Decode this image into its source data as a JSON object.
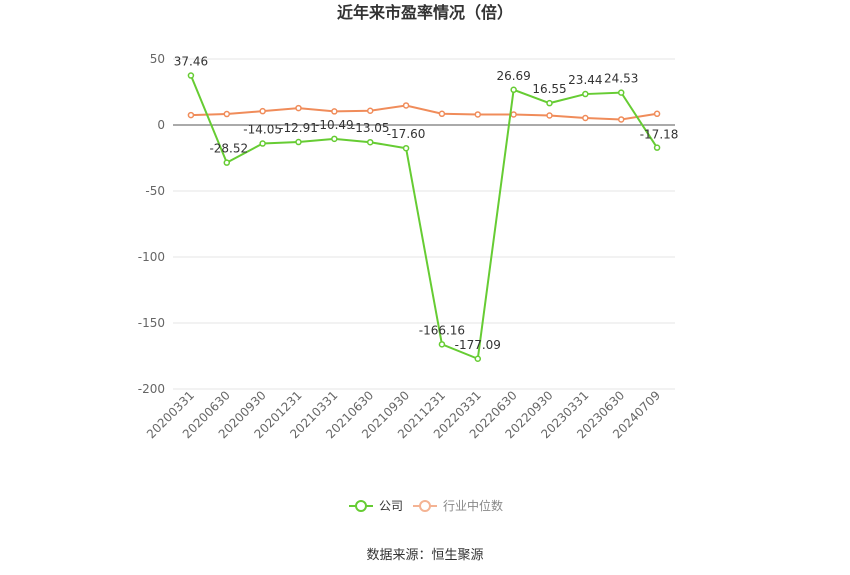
{
  "chart_data": {
    "type": "line",
    "title": "近年来市盈率情况（倍）",
    "categories": [
      "20200331",
      "20200630",
      "20200930",
      "20201231",
      "20210331",
      "20210630",
      "20210930",
      "20211231",
      "20220331",
      "20220630",
      "20220930",
      "20230331",
      "20230630",
      "20240709"
    ],
    "series": [
      {
        "name": "公司",
        "color": "#66cc33",
        "values": [
          37.46,
          -28.52,
          -14.05,
          -12.91,
          -10.49,
          -13.05,
          -17.6,
          -166.16,
          -177.09,
          26.69,
          16.55,
          23.44,
          24.53,
          -17.18
        ],
        "labels": [
          "37.46",
          "-28.52",
          "-14.05",
          "-12.91",
          "-10.49",
          "-13.05",
          "-17.60",
          "-166.16",
          "-177.09",
          "26.69",
          "16.55",
          "23.44",
          "24.53",
          "-17.18"
        ]
      },
      {
        "name": "行业中位数",
        "color": "#f08c5a",
        "values": [
          7.5,
          8.3,
          10.5,
          12.8,
          10.3,
          10.8,
          14.8,
          8.5,
          8.0,
          8.0,
          7.2,
          5.3,
          4.2,
          8.5
        ]
      }
    ],
    "ylim": [
      -200,
      50
    ],
    "yticks": [
      50,
      0,
      -50,
      -100,
      -150,
      -200
    ],
    "grid": true,
    "legend": "bottom-center",
    "source": "数据来源：恒生聚源"
  }
}
